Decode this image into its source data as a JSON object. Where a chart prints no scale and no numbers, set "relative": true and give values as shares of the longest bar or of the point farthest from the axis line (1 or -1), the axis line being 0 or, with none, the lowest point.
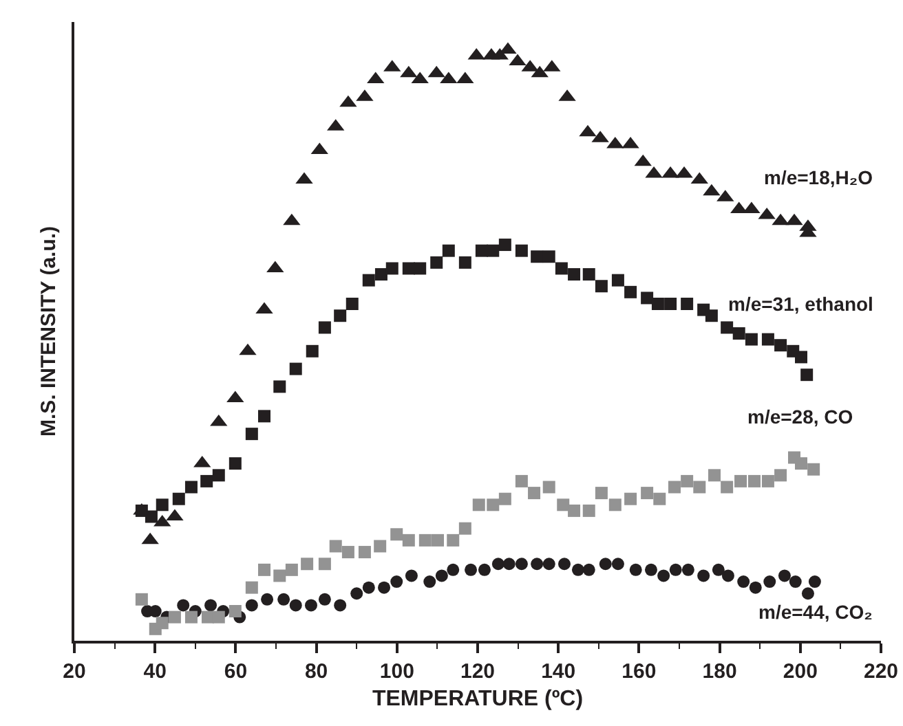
{
  "chart_data": {
    "type": "scatter",
    "relative": true,
    "xlabel": "TEMPERATURE (ºC)",
    "ylabel": "M.S. INTENSITY (a.u.)",
    "xlim": [
      20,
      220
    ],
    "xticks": [
      20,
      40,
      60,
      80,
      100,
      120,
      140,
      160,
      180,
      200,
      220
    ],
    "grid": false,
    "legend": false,
    "series": [
      {
        "name": "m/e=18,H₂O",
        "color": "#231f20",
        "marker": "triangle",
        "x": [
          36.7,
          38.8,
          41.8,
          44.9,
          51.7,
          55.8,
          59.9,
          63.0,
          67.1,
          69.8,
          73.9,
          77.0,
          80.8,
          84.8,
          87.9,
          92.0,
          94.7,
          98.8,
          102.9,
          105.7,
          109.8,
          112.8,
          116.9,
          119.7,
          123.4,
          125.5,
          127.5,
          129.9,
          133.0,
          135.4,
          138.4,
          142.2,
          147.3,
          150.4,
          154.1,
          157.9,
          161.0,
          163.7,
          167.8,
          171.2,
          175.0,
          178.0,
          181.4,
          184.8,
          187.9,
          191.7,
          195.1,
          198.5,
          201.9,
          201.9
        ],
        "values": [
          0.22,
          0.17,
          0.2,
          0.21,
          0.3,
          0.37,
          0.41,
          0.49,
          0.56,
          0.63,
          0.71,
          0.78,
          0.83,
          0.87,
          0.91,
          0.92,
          0.95,
          0.97,
          0.96,
          0.95,
          0.96,
          0.95,
          0.95,
          0.99,
          0.99,
          0.99,
          1.0,
          0.98,
          0.97,
          0.96,
          0.97,
          0.92,
          0.86,
          0.85,
          0.84,
          0.84,
          0.81,
          0.79,
          0.79,
          0.79,
          0.78,
          0.76,
          0.75,
          0.73,
          0.73,
          0.72,
          0.71,
          0.71,
          0.7,
          0.69
        ]
      },
      {
        "name": "m/e=31, ethanol",
        "color": "#231f20",
        "marker": "square",
        "x": [
          36.7,
          39.1,
          41.8,
          45.9,
          49.0,
          52.8,
          55.8,
          59.9,
          64.0,
          67.1,
          70.9,
          74.9,
          79.0,
          82.1,
          85.9,
          88.9,
          93.0,
          96.1,
          98.8,
          102.9,
          105.7,
          109.8,
          112.8,
          116.9,
          121.0,
          123.8,
          126.8,
          130.9,
          134.7,
          137.7,
          140.8,
          143.9,
          147.6,
          150.7,
          154.8,
          157.9,
          162.0,
          164.7,
          167.8,
          171.9,
          176.0,
          178.0,
          181.8,
          184.8,
          187.9,
          192.0,
          195.1,
          198.2,
          200.2,
          201.6
        ],
        "values": [
          0.22,
          0.21,
          0.23,
          0.24,
          0.26,
          0.27,
          0.28,
          0.3,
          0.35,
          0.38,
          0.43,
          0.46,
          0.49,
          0.53,
          0.55,
          0.57,
          0.61,
          0.62,
          0.63,
          0.63,
          0.63,
          0.64,
          0.66,
          0.64,
          0.66,
          0.66,
          0.67,
          0.66,
          0.65,
          0.65,
          0.63,
          0.62,
          0.62,
          0.6,
          0.61,
          0.59,
          0.58,
          0.57,
          0.57,
          0.57,
          0.56,
          0.55,
          0.53,
          0.52,
          0.51,
          0.51,
          0.5,
          0.49,
          0.48,
          0.45
        ]
      },
      {
        "name": "m/e=28, CO",
        "color": "#939393",
        "marker": "square",
        "x": [
          36.7,
          40.1,
          41.8,
          44.9,
          49.0,
          53.1,
          55.8,
          59.9,
          64.0,
          67.1,
          70.9,
          73.9,
          77.7,
          82.1,
          84.8,
          87.9,
          92.0,
          95.8,
          99.9,
          102.9,
          107.0,
          110.1,
          113.9,
          116.9,
          120.3,
          123.8,
          126.8,
          130.9,
          134.0,
          137.7,
          141.2,
          143.9,
          147.6,
          150.7,
          154.1,
          157.9,
          162.0,
          165.1,
          168.8,
          171.9,
          175.0,
          178.7,
          181.8,
          185.2,
          188.6,
          192.0,
          195.1,
          198.5,
          200.2,
          203.3
        ],
        "values": [
          0.07,
          0.02,
          0.03,
          0.04,
          0.04,
          0.04,
          0.04,
          0.05,
          0.09,
          0.12,
          0.11,
          0.12,
          0.13,
          0.13,
          0.16,
          0.15,
          0.15,
          0.16,
          0.18,
          0.17,
          0.17,
          0.17,
          0.17,
          0.19,
          0.23,
          0.23,
          0.24,
          0.27,
          0.25,
          0.26,
          0.23,
          0.22,
          0.22,
          0.25,
          0.23,
          0.24,
          0.25,
          0.24,
          0.26,
          0.27,
          0.26,
          0.28,
          0.26,
          0.27,
          0.27,
          0.27,
          0.28,
          0.31,
          0.3,
          0.29
        ]
      },
      {
        "name": "m/e=44, CO₂",
        "color": "#231f20",
        "marker": "circle",
        "x": [
          38.1,
          40.1,
          42.9,
          47.0,
          50.0,
          53.8,
          56.9,
          61.0,
          64.0,
          67.8,
          71.9,
          74.9,
          78.7,
          82.1,
          85.9,
          90.0,
          93.0,
          96.8,
          99.9,
          103.6,
          108.1,
          111.1,
          113.9,
          118.3,
          121.7,
          125.1,
          127.8,
          130.9,
          134.7,
          137.7,
          141.5,
          144.9,
          147.6,
          151.7,
          154.8,
          159.2,
          163.0,
          166.1,
          169.1,
          172.2,
          176.0,
          179.7,
          182.1,
          185.9,
          188.9,
          192.4,
          196.1,
          198.8,
          201.9,
          203.6
        ],
        "values": [
          0.05,
          0.05,
          0.04,
          0.06,
          0.05,
          0.06,
          0.05,
          0.04,
          0.06,
          0.07,
          0.07,
          0.06,
          0.06,
          0.07,
          0.06,
          0.08,
          0.09,
          0.09,
          0.1,
          0.11,
          0.1,
          0.11,
          0.12,
          0.12,
          0.12,
          0.13,
          0.13,
          0.13,
          0.13,
          0.13,
          0.13,
          0.12,
          0.12,
          0.13,
          0.13,
          0.12,
          0.12,
          0.11,
          0.12,
          0.12,
          0.11,
          0.12,
          0.11,
          0.1,
          0.09,
          0.1,
          0.11,
          0.1,
          0.08,
          0.1
        ]
      }
    ]
  }
}
